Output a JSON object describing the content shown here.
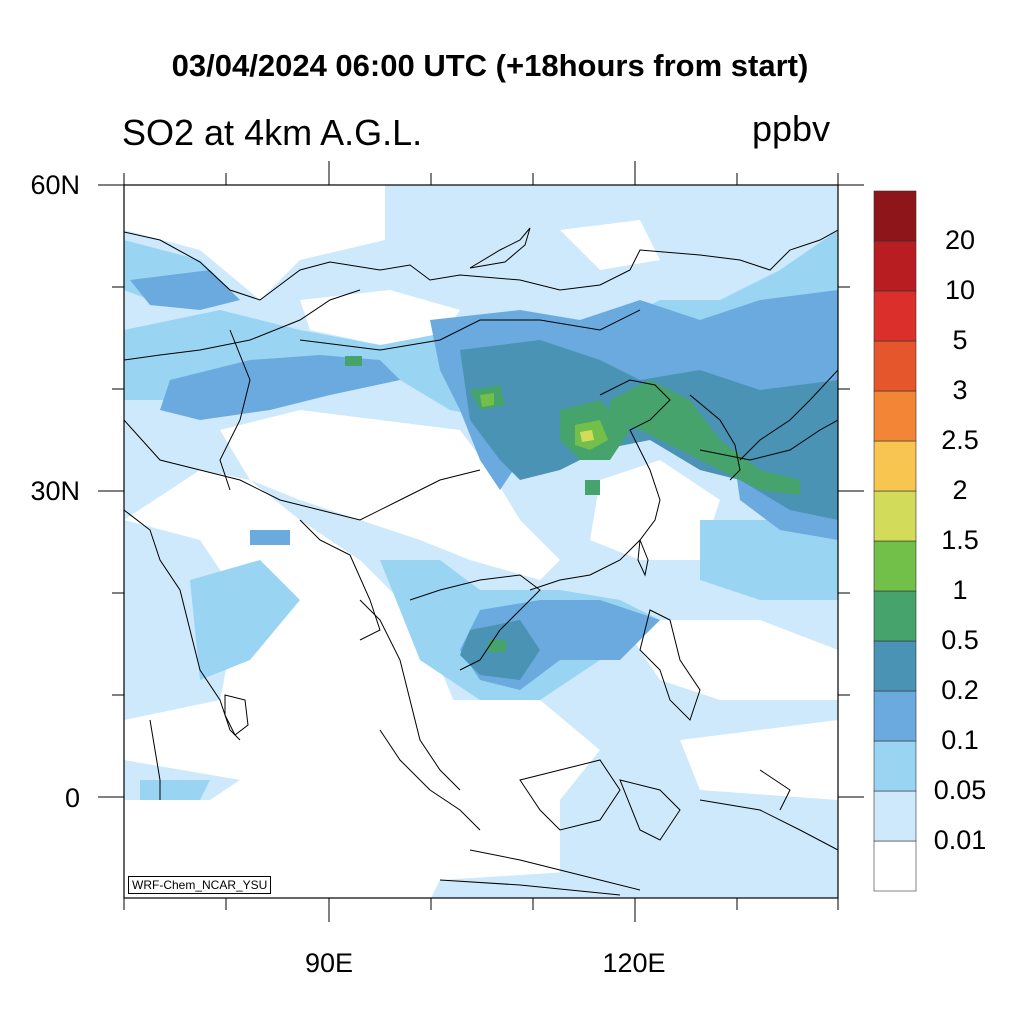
{
  "title": "03/04/2024 06:00 UTC (+18hours from start)",
  "subtitle": "SO2 at 4km A.G.L.",
  "units": "ppbv",
  "credit": "WRF-Chem_NCAR_YSU",
  "axes": {
    "lat_labels": [
      "60N",
      "30N",
      "0"
    ],
    "lon_labels": [
      "90E",
      "120E"
    ]
  },
  "colorbar": {
    "colors": [
      "#ffffff",
      "#cde9fb",
      "#99d5f3",
      "#6aaade",
      "#4a93b5",
      "#46a36c",
      "#72bf4a",
      "#d2db5a",
      "#f8c551",
      "#f38636",
      "#e5562d",
      "#da2f2b",
      "#b81d22",
      "#8e161a"
    ],
    "labels": [
      "0.01",
      "0.05",
      "0.1",
      "0.2",
      "0.5",
      "1",
      "1.5",
      "2",
      "2.5",
      "3",
      "5",
      "10",
      "20"
    ]
  }
}
